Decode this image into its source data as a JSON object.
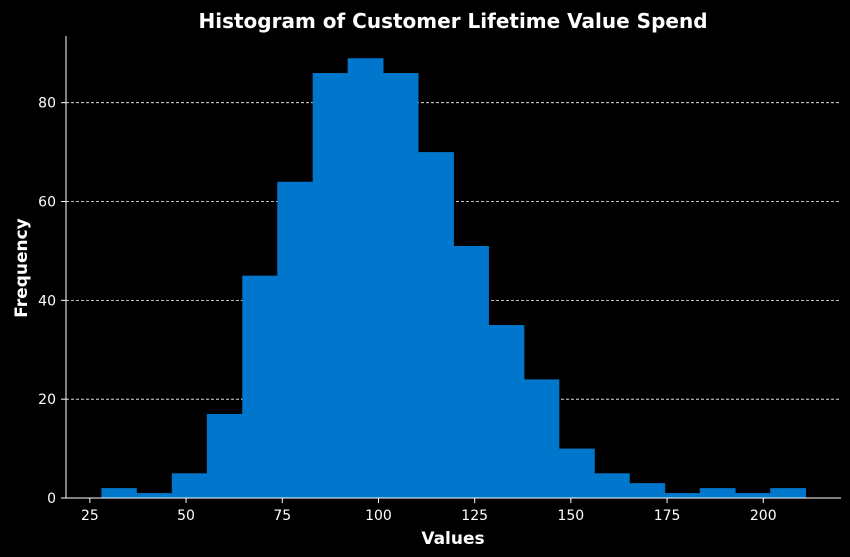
{
  "chart_data": {
    "type": "bar",
    "title": "Histogram of Customer Lifetime Value Spend",
    "xlabel": "Values",
    "ylabel": "Frequency",
    "bin_edges": [
      28.0,
      37.1,
      46.3,
      55.4,
      64.6,
      73.7,
      82.9,
      92.0,
      101.2,
      110.3,
      119.5,
      128.6,
      137.8,
      146.9,
      156.1,
      165.2,
      174.4,
      183.5,
      192.7,
      201.8,
      211.0
    ],
    "values": [
      2,
      1,
      5,
      17,
      45,
      64,
      86,
      89,
      86,
      70,
      51,
      35,
      24,
      10,
      5,
      3,
      1,
      2,
      1,
      2
    ],
    "xlim": [
      18.8,
      220.2
    ],
    "ylim": [
      0,
      93.5
    ],
    "xticks": [
      25,
      50,
      75,
      100,
      125,
      150,
      175,
      200
    ],
    "yticks": [
      0,
      20,
      40,
      60,
      80
    ],
    "grid": "horizontal dashed",
    "colors": {
      "bar": "#0077cc",
      "background": "#000000",
      "text": "#ffffff",
      "grid": "#ffffff"
    }
  }
}
